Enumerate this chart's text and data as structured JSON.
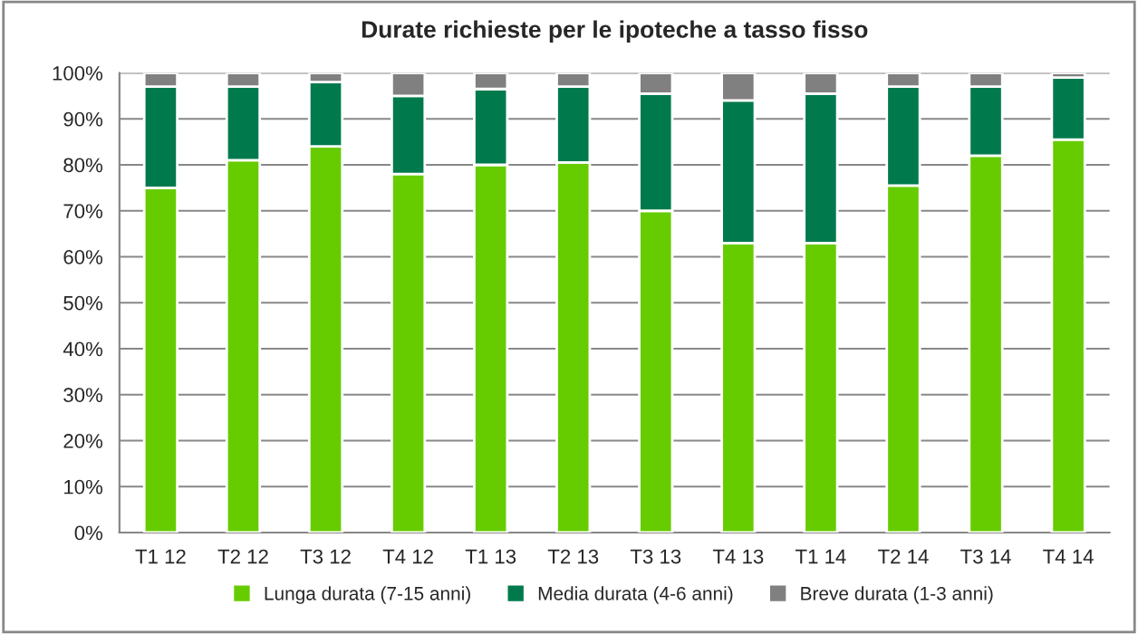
{
  "chart_data": {
    "type": "bar",
    "title": "Durate richieste per le ipoteche a tasso fisso",
    "stacked": true,
    "categories": [
      "T1 12",
      "T2 12",
      "T3 12",
      "T4 12",
      "T1 13",
      "T2 13",
      "T3 13",
      "T4 13",
      "T1 14",
      "T2 14",
      "T3 14",
      "T4 14"
    ],
    "series": [
      {
        "name": "Lunga durata (7-15 anni)",
        "color": "#66cc00",
        "values": [
          75,
          81,
          84,
          78,
          80,
          80.5,
          70,
          63,
          63,
          75.5,
          82,
          85.5
        ]
      },
      {
        "name": "Media durata (4-6 anni)",
        "color": "#007a4d",
        "values": [
          22,
          16,
          14,
          17,
          16.5,
          16.5,
          25.5,
          31,
          32.5,
          21.5,
          15,
          13.5
        ]
      },
      {
        "name": "Breve durata (1-3 anni)",
        "color": "#808080",
        "values": [
          3,
          3,
          2,
          5,
          3.5,
          3,
          4.5,
          6,
          4.5,
          3,
          3,
          1
        ]
      }
    ],
    "ylim": [
      0,
      100
    ],
    "yticks": [
      {
        "value": 0,
        "label": "0%"
      },
      {
        "value": 10,
        "label": "10%"
      },
      {
        "value": 20,
        "label": "20%"
      },
      {
        "value": 30,
        "label": "30%"
      },
      {
        "value": 40,
        "label": "40%"
      },
      {
        "value": 50,
        "label": "50%"
      },
      {
        "value": 60,
        "label": "60%"
      },
      {
        "value": 70,
        "label": "70%"
      },
      {
        "value": 80,
        "label": "80%"
      },
      {
        "value": 90,
        "label": "90%"
      },
      {
        "value": 100,
        "label": "100%"
      }
    ],
    "grid": "y",
    "legend": "bottom"
  }
}
